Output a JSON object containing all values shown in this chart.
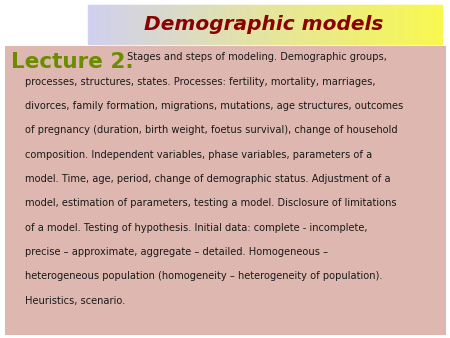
{
  "title": "Demographic models",
  "title_color": "#8B0000",
  "bg_color": "#deb8b0",
  "outer_bg": "#ffffff",
  "lecture_label": "Lecture 2.",
  "lecture_color": "#6b8c00",
  "body_color": "#1a1a1a",
  "figsize": [
    4.5,
    3.38
  ],
  "dpi": 100,
  "lines_first": " Stages and steps of modeling. Demographic groups,",
  "lines_rest": [
    "processes, structures, states. Processes: fertility, mortality, marriages,",
    "divorces, family formation, migrations, mutations, age structures, outcomes",
    "of pregnancy (duration, birth weight, foetus survival), change of household",
    "composition. Independent variables, phase variables, parameters of a",
    "model. Time, age, period, change of demographic status. Adjustment of a",
    "model, estimation of parameters, testing a model. Disclosure of limitations",
    "of a model. Testing of hypothesis. Initial data: complete - incomplete,",
    "precise – approximate, aggregate – detailed. Homogeneous –",
    "heterogeneous population (homogeneity – heterogeneity of population).",
    "Heuristics, scenario."
  ]
}
